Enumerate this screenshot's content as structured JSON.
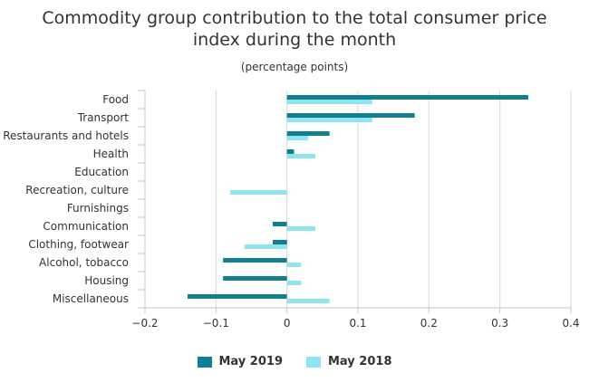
{
  "colors": {
    "series_2019": "#0f7f91",
    "series_2018": "#8fe3f2",
    "grid": "#d8d8d8",
    "axis": "#c0c8d8"
  },
  "chart_data": {
    "type": "bar",
    "orientation": "horizontal",
    "title": "Commodity group contribution to the total consumer price index during the month",
    "title_lines": [
      "Commodity group contribution to the total consumer price",
      "index during the month"
    ],
    "subtitle": "(percentage points)",
    "categories": [
      "Food",
      "Transport",
      "Restaurants and hotels",
      "Health",
      "Education",
      "Recreation, culture",
      "Furnishings",
      "Communication",
      "Clothing, footwear",
      "Alcohol, tobacco",
      "Housing",
      "Miscellaneous"
    ],
    "series": [
      {
        "name": "May 2019",
        "color": "#0f7f91",
        "values": [
          0.34,
          0.18,
          0.06,
          0.01,
          0,
          0,
          0,
          -0.02,
          -0.02,
          -0.09,
          -0.09,
          -0.14
        ]
      },
      {
        "name": "May 2018",
        "color": "#8fe3f2",
        "values": [
          0.12,
          0.12,
          0.03,
          0.04,
          0,
          -0.08,
          0,
          0.04,
          -0.06,
          0.02,
          0.02,
          0.06
        ]
      }
    ],
    "xlim": [
      -0.2,
      0.4
    ],
    "xticks": [
      -0.2,
      -0.1,
      0,
      0.1,
      0.2,
      0.3,
      0.4
    ],
    "xtick_labels": [
      "−0.2",
      "−0.1",
      "0",
      "0.1",
      "0.2",
      "0.3",
      "0.4"
    ],
    "grid": true,
    "legend_position": "bottom"
  }
}
